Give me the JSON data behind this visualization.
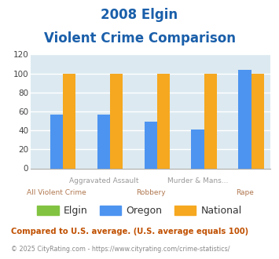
{
  "title_line1": "2008 Elgin",
  "title_line2": "Violent Crime Comparison",
  "series": {
    "Elgin": [
      0,
      0,
      0,
      0,
      0
    ],
    "Oregon": [
      57,
      57,
      49,
      41,
      104
    ],
    "National": [
      100,
      100,
      100,
      100,
      100
    ]
  },
  "bar_colors": {
    "Elgin": "#82c341",
    "Oregon": "#4d94f0",
    "National": "#f5a820"
  },
  "ylim": [
    0,
    120
  ],
  "yticks": [
    0,
    20,
    40,
    60,
    80,
    100,
    120
  ],
  "title_color": "#1a5faa",
  "title_fontsize": 12,
  "plot_bg_color": "#dce9f0",
  "outer_bg_color": "#ffffff",
  "grid_color": "#ffffff",
  "top_label_color": "#999999",
  "bot_label_color": "#b07850",
  "top_labels": [
    "",
    "Aggravated Assault",
    "",
    "Murder & Mans...",
    ""
  ],
  "bot_labels": [
    "All Violent Crime",
    "",
    "Robbery",
    "",
    "Rape"
  ],
  "footnote1": "Compared to U.S. average. (U.S. average equals 100)",
  "footnote2": "© 2025 CityRating.com - https://www.cityrating.com/crime-statistics/",
  "footnote1_color": "#c05000",
  "footnote2_color": "#888888",
  "bar_width": 0.27,
  "n_groups": 5
}
